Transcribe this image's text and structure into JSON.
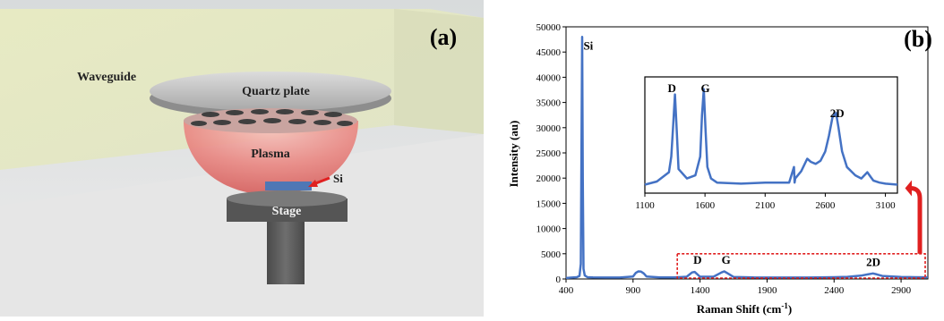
{
  "panel_a": {
    "label": "(a)",
    "waveguide": "Waveguide",
    "quartz_plate": "Quartz plate",
    "plasma": "Plasma",
    "si": "Si",
    "stage": "Stage"
  },
  "panel_b": {
    "label": "(b)",
    "colors": {
      "line": "#4472C4",
      "box": "#E02020",
      "arrow": "#E02020"
    },
    "chart_data": [
      {
        "type": "line",
        "title": "",
        "xlabel": "Raman Shift (cm-1)",
        "ylabel": "Intensity (au)",
        "xlim": [
          400,
          3100
        ],
        "ylim": [
          0,
          50000
        ],
        "x_ticks": [
          "400",
          "900",
          "1400",
          "1900",
          "2400",
          "2900"
        ],
        "y_ticks": [
          "0",
          "5000",
          "10000",
          "15000",
          "20000",
          "25000",
          "30000",
          "35000",
          "40000",
          "45000",
          "50000"
        ],
        "annotations": [
          "Si",
          "D",
          "G",
          "2D"
        ],
        "series": [
          {
            "x": [
              400,
              480,
              500,
              510,
              515,
              520,
              525,
              530,
              540,
              560,
              600,
              700,
              800,
              900,
              920,
              940,
              960,
              980,
              1000,
              1100,
              1200,
              1300,
              1340,
              1360,
              1400,
              1500,
              1560,
              1580,
              1600,
              1650,
              1800,
              2000,
              2200,
              2400,
              2500,
              2600,
              2650,
              2690,
              2720,
              2760,
              2900,
              3000,
              3100
            ],
            "y": [
              200,
              350,
              600,
              3000,
              25000,
              48000,
              20000,
              2000,
              700,
              350,
              300,
              280,
              280,
              500,
              1200,
              1500,
              1450,
              1100,
              500,
              300,
              300,
              450,
              1300,
              1400,
              450,
              450,
              1300,
              1500,
              1200,
              400,
              300,
              280,
              280,
              350,
              420,
              650,
              900,
              1100,
              900,
              600,
              400,
              350,
              330
            ]
          }
        ]
      },
      {
        "type": "line",
        "title": "",
        "xlim": [
          1100,
          3200
        ],
        "x_ticks": [
          "1100",
          "1600",
          "2100",
          "2600",
          "3100"
        ],
        "annotations": [
          "D",
          "G",
          "2D"
        ],
        "series": [
          {
            "x": [
              1100,
              1200,
              1300,
              1320,
              1335,
              1350,
              1365,
              1380,
              1450,
              1520,
              1560,
              1575,
              1590,
              1605,
              1620,
              1650,
              1700,
              1900,
              2100,
              2300,
              2340,
              2345,
              2350,
              2400,
              2450,
              2480,
              2520,
              2560,
              2600,
              2630,
              2660,
              2690,
              2710,
              2740,
              2780,
              2850,
              2900,
              2950,
              2980,
              3000,
              3050,
              3100,
              3200
            ],
            "y": [
              0.03,
              0.06,
              0.15,
              0.3,
              0.6,
              0.9,
              0.55,
              0.18,
              0.09,
              0.12,
              0.3,
              0.7,
              0.95,
              0.55,
              0.2,
              0.09,
              0.05,
              0.04,
              0.05,
              0.05,
              0.2,
              0.05,
              0.09,
              0.16,
              0.28,
              0.25,
              0.23,
              0.26,
              0.35,
              0.5,
              0.68,
              0.72,
              0.58,
              0.35,
              0.2,
              0.12,
              0.09,
              0.15,
              0.1,
              0.07,
              0.05,
              0.04,
              0.03
            ]
          }
        ]
      }
    ]
  }
}
